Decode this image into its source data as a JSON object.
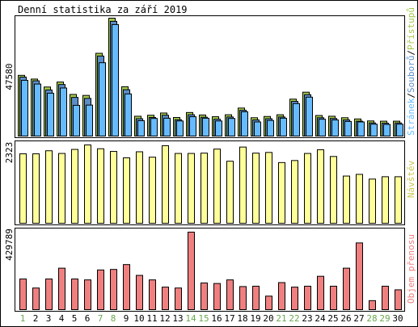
{
  "chart_data": [
    {
      "type": "bar",
      "title": "Denní statistika za září 2019",
      "categories": [
        "1",
        "2",
        "3",
        "4",
        "5",
        "6",
        "7",
        "8",
        "9",
        "10",
        "11",
        "12",
        "13",
        "14",
        "15",
        "16",
        "17",
        "18",
        "19",
        "20",
        "21",
        "22",
        "23",
        "24",
        "25",
        "26",
        "27",
        "28",
        "29",
        "30"
      ],
      "weekend_days": [
        "1",
        "7",
        "8",
        "14",
        "15",
        "21",
        "22",
        "28",
        "29"
      ],
      "ymax_label": "47580",
      "ylim": [
        0,
        47580
      ],
      "side_label_parts": [
        "Stránek",
        "/",
        "Souborů",
        "/",
        "Přístupů"
      ],
      "series": [
        {
          "name": "Přístupů",
          "color": "#a4c84c",
          "values": [
            24500,
            23000,
            19800,
            21800,
            16800,
            16400,
            33400,
            47580,
            19900,
            8000,
            8400,
            9300,
            7500,
            9500,
            8500,
            7800,
            8600,
            11300,
            7400,
            7900,
            8600,
            14900,
            17700,
            8300,
            8000,
            7400,
            6900,
            6100,
            6000,
            6000
          ]
        },
        {
          "name": "Souborů",
          "color": "#5b8ec9",
          "values": [
            23800,
            22300,
            18600,
            20800,
            15600,
            15200,
            32300,
            46300,
            18700,
            7000,
            7500,
            8400,
            6600,
            8600,
            7600,
            6800,
            7700,
            10400,
            6500,
            7000,
            7700,
            14000,
            16700,
            7400,
            7100,
            6500,
            6000,
            5300,
            5200,
            5300
          ]
        },
        {
          "name": "Stránek",
          "color": "#66bbff",
          "values": [
            22500,
            21000,
            17300,
            19400,
            12400,
            12500,
            29600,
            45000,
            17000,
            6200,
            7100,
            7200,
            6100,
            7800,
            7200,
            6100,
            7100,
            9800,
            5700,
            6300,
            7200,
            13100,
            15700,
            6800,
            6500,
            5900,
            5700,
            4800,
            4700,
            4800
          ]
        }
      ]
    },
    {
      "type": "bar",
      "ymax_label": "2323",
      "ylim": [
        0,
        2323
      ],
      "side_label": "Návštěv",
      "series": [
        {
          "name": "Návštěv",
          "color": "#ffff99",
          "values": [
            2060,
            2060,
            2150,
            2070,
            2190,
            2323,
            2210,
            2130,
            1940,
            2120,
            1960,
            2300,
            2070,
            2070,
            2080,
            2200,
            1840,
            2260,
            2080,
            2100,
            1800,
            1860,
            2070,
            2180,
            1980,
            1400,
            1450,
            1310,
            1380,
            1380
          ]
        }
      ]
    },
    {
      "type": "bar",
      "ymax_label": "429789",
      "ylim": [
        0,
        429789
      ],
      "side_label": "Objem přenosu",
      "series": [
        {
          "name": "Objem přenosu",
          "color": "#f08080",
          "values": [
            170000,
            120000,
            170000,
            230000,
            170000,
            165000,
            220000,
            223000,
            250000,
            190000,
            165000,
            125000,
            120000,
            429789,
            148000,
            145000,
            165000,
            128000,
            130000,
            75000,
            150000,
            125000,
            130000,
            185000,
            130000,
            230000,
            370000,
            50000,
            130000,
            110000
          ]
        }
      ]
    }
  ]
}
